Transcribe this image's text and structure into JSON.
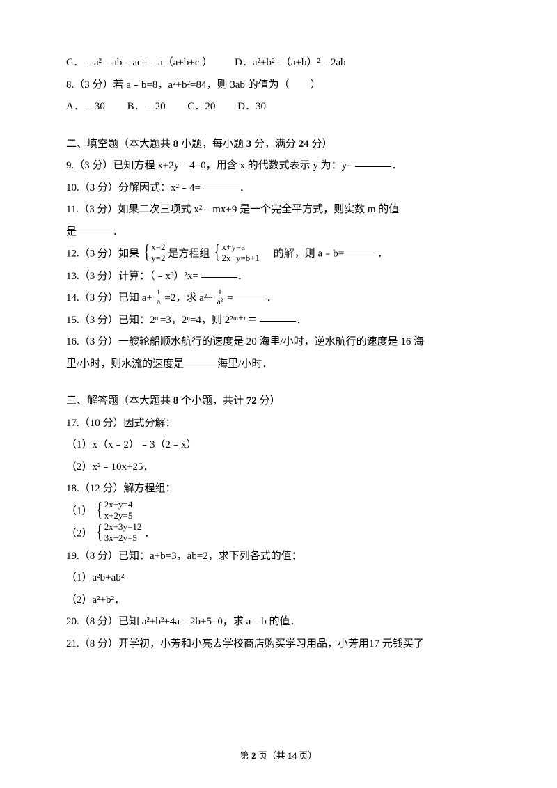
{
  "q7c": "C．﹣a²﹣ab﹣ac=﹣a（a+b+c ）",
  "q7d": "D．a²+b²=（a+b）²﹣2ab",
  "q8_stem": "8.（3 分）若 a﹣b=8，a²+b²=84，则 3ab 的值为（　　）",
  "q8a": "A．﹣30",
  "q8b": "B．﹣20",
  "q8c": "C．20",
  "q8d": "D．30",
  "sec2_title": "二、填空题（本大题共",
  "sec2_b1": "8",
  "sec2_mid1": "小题，每小题",
  "sec2_b2": "3",
  "sec2_mid2": "分，满分",
  "sec2_b3": "24",
  "sec2_tail": "分）",
  "q9_a": "9.（3 分）已知方程 x+2y﹣4=0，用含 x 的代数式表示 y 为：y=",
  "q9_b": "．",
  "q10_a": "10.（3 分）分解因式：x²﹣4=",
  "q10_b": "．",
  "q11_a": "11.（3 分）如果二次三项式  x²﹣mx+9 是一个完全平方式，则实数    m 的值",
  "q11_b": "是",
  "q11_c": "．",
  "q12_a": "12.（3 分）如果",
  "q12_sys1_r1": "x=2",
  "q12_sys1_r2": "y=2",
  "q12_m": "是方程组",
  "q12_sys2_r1": "x+y=a",
  "q12_sys2_r2": "2x−y=b+1",
  "q12_b": "的解，则 a﹣b=",
  "q12_c": "．",
  "q13_a": "13.（3 分）计算：（﹣x³）²x=",
  "q13_b": "．",
  "q14_a": "14.（3 分）已知 a+",
  "q14_f1n": "1",
  "q14_f1d": "a",
  "q14_m": "=2，求 a²+",
  "q14_f2n": "1",
  "q14_f2d": "a²",
  "q14_b": "=",
  "q14_c": "．",
  "q15_a": "15.（3 分）已知：2ᵐ=3，2ⁿ=4，则 2²ᵐ⁺ⁿ＝",
  "q15_b": "．",
  "q16_a": "16.（3 分）一艘轮船顺水航行的速度是 20 海里/小时，逆水航行的速度是 16 海",
  "q16_b": "里/小时，则水流的速度是",
  "q16_c": "海里/小时．",
  "sec3_title": "三、解答题（本大题共",
  "sec3_b1": "8",
  "sec3_mid1": "个小题，共计",
  "sec3_b2": "72",
  "sec3_tail": "分）",
  "q17": "17.（10 分）因式分解：",
  "q17_1": "（1）x（x﹣2）﹣3（2﹣x）",
  "q17_2": "（2）x²﹣10x+25．",
  "q18": "18.（12 分）解方程组：",
  "q18_1": "（1）",
  "q18_1_r1": "2x+y=4",
  "q18_1_r2": "x+2y=5",
  "q18_2": "（2）",
  "q18_2_r1": "2x+3y=12",
  "q18_2_r2": "3x−2y=5",
  "q18_2_tail": "．",
  "q19": "19.（8 分）已知：a+b=3，ab=2，求下列各式的值：",
  "q19_1": "（1）a²b+ab²",
  "q19_2": "（2）a²+b²．",
  "q20": "20.（8 分）已知 a²+b²+4a﹣2b+5=0，求 a﹣b 的值．",
  "q21": "21.（8 分）开学初，小芳和小亮去学校商店购买学习用品，小芳用17 元钱买了",
  "footer_a": "第",
  "footer_b": "2",
  "footer_c": "页（共",
  "footer_d": "14",
  "footer_e": "页）"
}
